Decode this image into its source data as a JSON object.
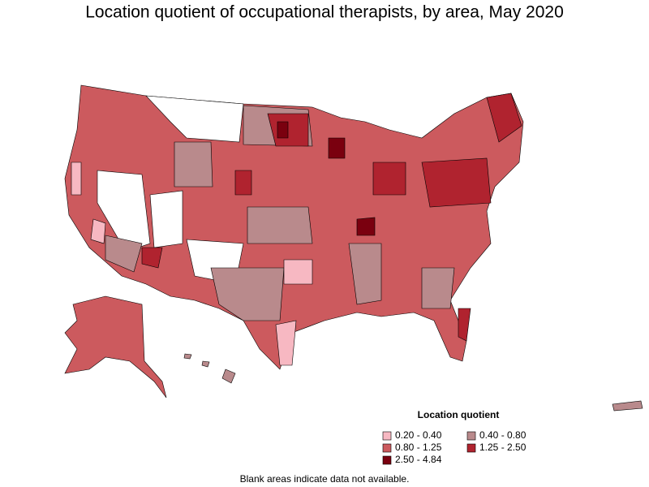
{
  "title": "Location quotient of occupational therapists, by area, May 2020",
  "legend": {
    "title": "Location quotient",
    "items": [
      {
        "label": "0.20 - 0.40",
        "color": "#f7b8c2"
      },
      {
        "label": "0.40 - 0.80",
        "color": "#b98a8c"
      },
      {
        "label": "0.80 - 1.25",
        "color": "#cc5a5e"
      },
      {
        "label": "1.25 - 2.50",
        "color": "#b0232f"
      },
      {
        "label": "2.50 - 4.84",
        "color": "#7a000f"
      }
    ]
  },
  "note": "Blank areas indicate data not available."
}
